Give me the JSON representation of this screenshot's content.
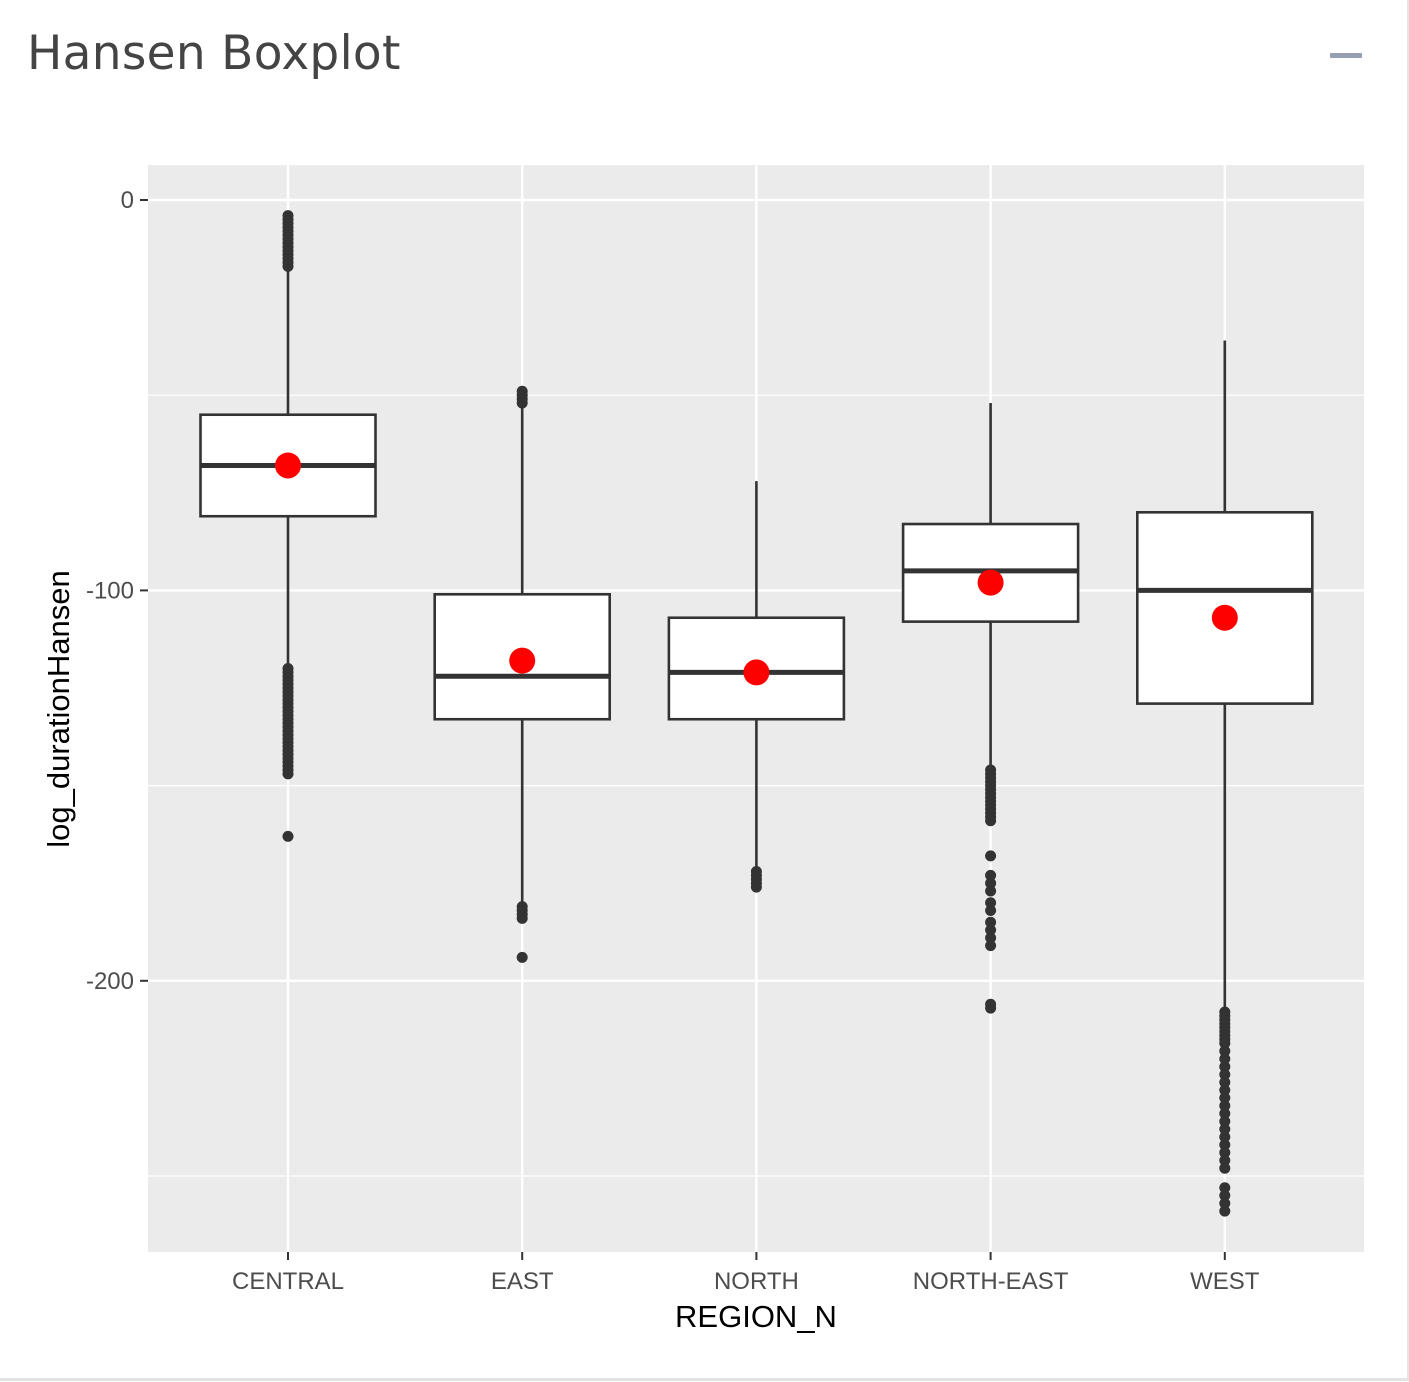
{
  "card": {
    "title": "Hansen Boxplot",
    "collapse_icon": "minus-icon"
  },
  "colors": {
    "panel_bg": "#ebebeb",
    "grid": "#ffffff",
    "box_line": "#333333",
    "box_fill": "#ffffff",
    "mean_point": "#ff0000",
    "outlier": "#333333"
  },
  "chart_data": {
    "type": "boxplot",
    "xlabel": "REGION_N",
    "ylabel": "log_durationHansen",
    "ylim": [
      -269,
      9
    ],
    "yticks": [
      0,
      -100,
      -200
    ],
    "ytick_labels": [
      "0",
      "-100",
      "-200"
    ],
    "grid": true,
    "categories": [
      "CENTRAL",
      "EAST",
      "NORTH",
      "NORTH-EAST",
      "WEST"
    ],
    "boxes": [
      {
        "category": "CENTRAL",
        "whisker_high": -18,
        "q3": -55,
        "median": -68,
        "q1": -81,
        "whisker_low": -147,
        "mean": -68,
        "outliers": [
          -4,
          -5,
          -6,
          -7,
          -8,
          -9,
          -10,
          -11,
          -12,
          -13,
          -14,
          -15,
          -16,
          -17,
          -120,
          -121,
          -122,
          -123,
          -124,
          -125,
          -126,
          -127,
          -128,
          -129,
          -130,
          -131,
          -132,
          -133,
          -134,
          -135,
          -136,
          -137,
          -138,
          -139,
          -140,
          -141,
          -142,
          -143,
          -144,
          -145,
          -146,
          -147,
          -163
        ]
      },
      {
        "category": "EAST",
        "whisker_high": -51,
        "q3": -101,
        "median": -122,
        "q1": -133,
        "whisker_low": -180,
        "mean": -118,
        "outliers": [
          -49,
          -50,
          -51,
          -52,
          -181,
          -182,
          -183,
          -184,
          -194
        ]
      },
      {
        "category": "NORTH",
        "whisker_high": -72,
        "q3": -107,
        "median": -121,
        "q1": -133,
        "whisker_low": -171,
        "mean": -121,
        "outliers": [
          -172,
          -173,
          -174,
          -175,
          -176
        ]
      },
      {
        "category": "NORTH-EAST",
        "whisker_high": -52,
        "q3": -83,
        "median": -95,
        "q1": -108,
        "whisker_low": -145,
        "mean": -98,
        "outliers": [
          -146,
          -147,
          -148,
          -149,
          -150,
          -151,
          -152,
          -153,
          -154,
          -155,
          -156,
          -157,
          -158,
          -159,
          -168,
          -173,
          -175,
          -177,
          -180,
          -182,
          -185,
          -187,
          -189,
          -191,
          -206,
          -207
        ]
      },
      {
        "category": "WEST",
        "whisker_high": -36,
        "q3": -80,
        "median": -100,
        "q1": -129,
        "whisker_low": -207,
        "mean": -107,
        "outliers": [
          -208,
          -209,
          -210,
          -211,
          -212,
          -213,
          -214,
          -215,
          -216,
          -218,
          -220,
          -222,
          -224,
          -226,
          -228,
          -230,
          -232,
          -234,
          -236,
          -238,
          -240,
          -242,
          -244,
          -246,
          -248,
          -253,
          -255,
          -257,
          -259
        ]
      }
    ]
  }
}
